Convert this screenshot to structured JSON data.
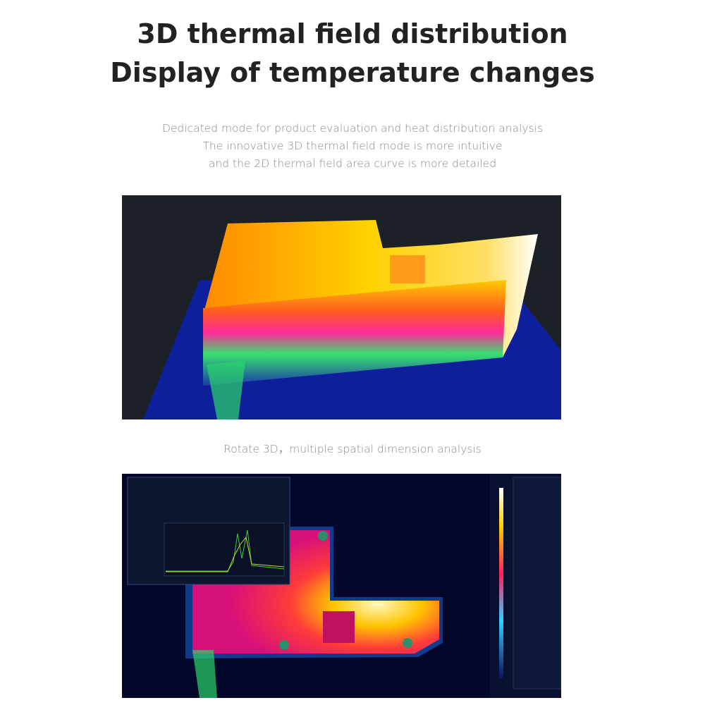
{
  "header": {
    "title_lines": [
      "3D thermal field distribution",
      "Display of temperature changes"
    ],
    "description_lines": [
      "Dedicated mode for product evaluation and heat distribution analysis",
      "The innovative 3D thermal field mode is more intuitive",
      "and the 2D thermal field area curve is more detailed"
    ]
  },
  "images": [
    {
      "caption": "Rotate 3D，multiple spatial dimension analysis"
    }
  ]
}
